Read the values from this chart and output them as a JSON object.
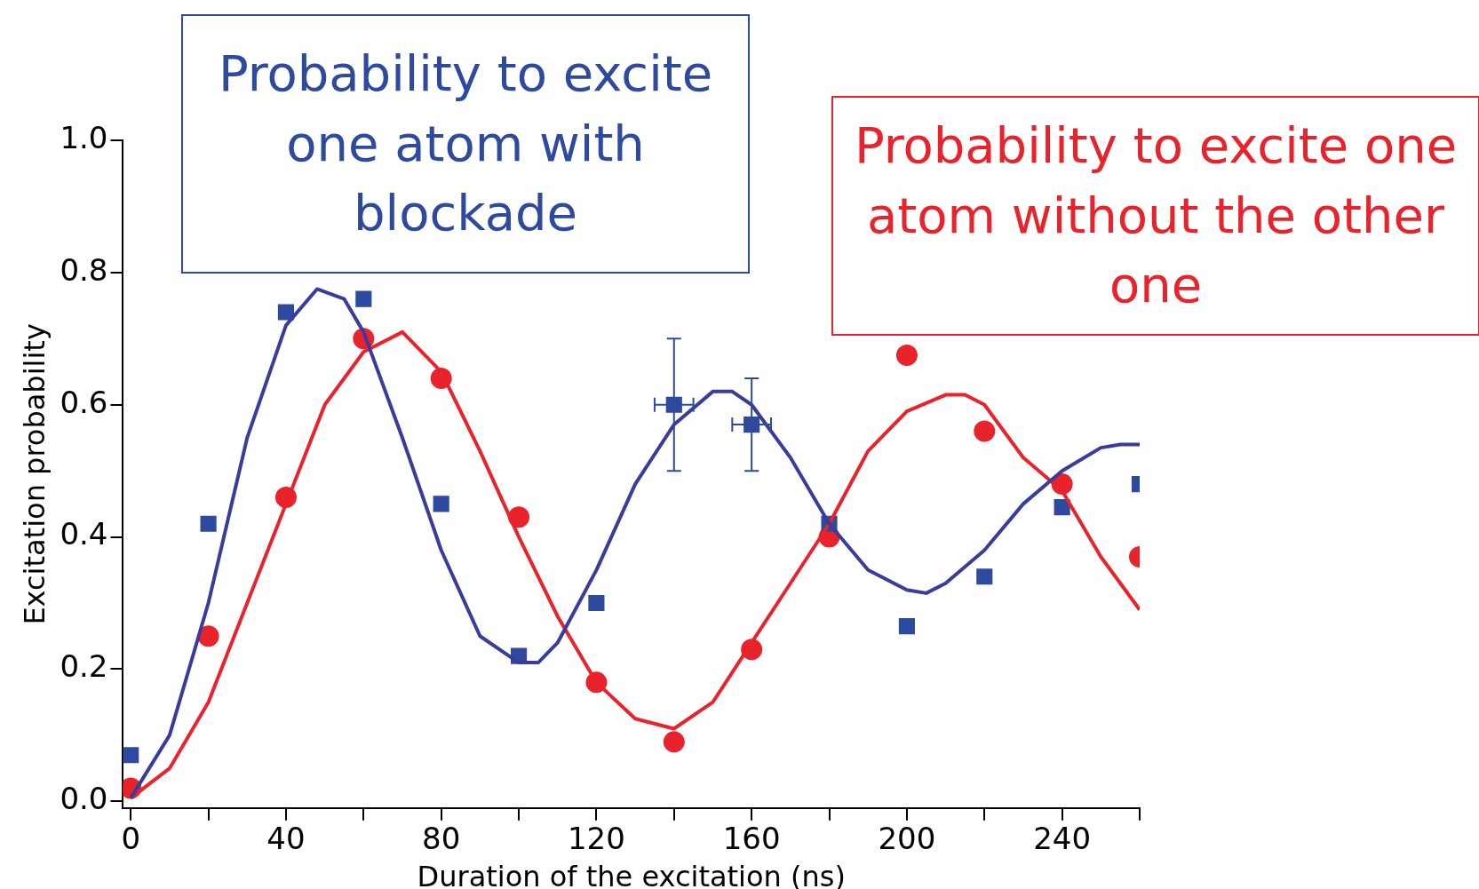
{
  "chart_data": {
    "type": "scatter",
    "xlabel": "Duration of the excitation (ns)",
    "ylabel": "Excitation probability",
    "annotations": [
      "Probability to excite one atom with blockade",
      "Probability to excite one atom without the other one"
    ],
    "xlim": [
      -2,
      260
    ],
    "xticks": [
      0,
      {
        "value": 20,
        "label": null
      },
      40,
      {
        "value": 60,
        "label": null
      },
      80,
      {
        "value": 100,
        "label": null
      },
      120,
      {
        "value": 140,
        "label": null
      },
      160,
      {
        "value": 180,
        "label": null
      },
      200,
      {
        "value": 220,
        "label": null
      },
      240,
      {
        "value": 260,
        "label": null
      }
    ],
    "ylim": [
      -0.01,
      1.0
    ],
    "yticks": [
      {
        "value": 0,
        "label": "0.0"
      },
      0.2,
      0.4,
      0.6,
      0.8,
      {
        "value": 1,
        "label": "1.0"
      }
    ],
    "grid": false,
    "legend": false,
    "series": [
      {
        "marker": "square",
        "color": "#2e4a9e",
        "x": [
          0,
          20,
          40,
          60,
          80,
          100,
          120,
          140,
          160,
          180,
          200,
          220,
          240,
          260
        ],
        "values": [
          0.07,
          0.42,
          0.74,
          0.76,
          0.45,
          0.22,
          0.3,
          0.6,
          0.57,
          0.42,
          0.265,
          0.34,
          0.445,
          0.48
        ],
        "errors": [
          null,
          null,
          null,
          null,
          null,
          null,
          null,
          [
            0.5,
            0.7
          ],
          [
            0.5,
            0.64
          ],
          null,
          null,
          null,
          null,
          null
        ],
        "xerrors": [
          null,
          null,
          null,
          null,
          null,
          null,
          null,
          5,
          5,
          null,
          null,
          null,
          null,
          null
        ]
      },
      {
        "marker": "circle",
        "color": "#e8232b",
        "x": [
          0,
          20,
          40,
          60,
          80,
          100,
          120,
          140,
          160,
          180,
          200,
          220,
          240,
          260
        ],
        "values": [
          0.02,
          0.25,
          0.46,
          0.7,
          0.64,
          0.43,
          0.18,
          0.09,
          0.23,
          0.4,
          0.675,
          0.56,
          0.48,
          0.37
        ]
      },
      {
        "type": "line",
        "marker": "none",
        "color": "#3a3c9c",
        "x": [
          0,
          10,
          20,
          30,
          40,
          48,
          55,
          60,
          70,
          80,
          90,
          100,
          105,
          110,
          120,
          130,
          140,
          150,
          155,
          160,
          170,
          180,
          190,
          200,
          205,
          210,
          220,
          230,
          240,
          250,
          255,
          260
        ],
        "values": [
          0.005,
          0.1,
          0.3,
          0.55,
          0.72,
          0.775,
          0.76,
          0.71,
          0.55,
          0.38,
          0.25,
          0.21,
          0.21,
          0.24,
          0.35,
          0.48,
          0.57,
          0.62,
          0.62,
          0.6,
          0.52,
          0.42,
          0.35,
          0.32,
          0.315,
          0.33,
          0.38,
          0.45,
          0.5,
          0.535,
          0.54,
          0.54
        ]
      },
      {
        "type": "line",
        "marker": "none",
        "color": "#e8232b",
        "x": [
          0,
          10,
          20,
          30,
          40,
          50,
          60,
          70,
          80,
          90,
          100,
          110,
          120,
          130,
          140,
          150,
          160,
          170,
          180,
          190,
          200,
          210,
          215,
          220,
          230,
          240,
          250,
          260
        ],
        "values": [
          0.005,
          0.05,
          0.15,
          0.3,
          0.45,
          0.6,
          0.68,
          0.71,
          0.65,
          0.53,
          0.4,
          0.28,
          0.18,
          0.125,
          0.11,
          0.15,
          0.24,
          0.33,
          0.42,
          0.53,
          0.59,
          0.615,
          0.615,
          0.6,
          0.52,
          0.47,
          0.37,
          0.29
        ]
      }
    ]
  }
}
